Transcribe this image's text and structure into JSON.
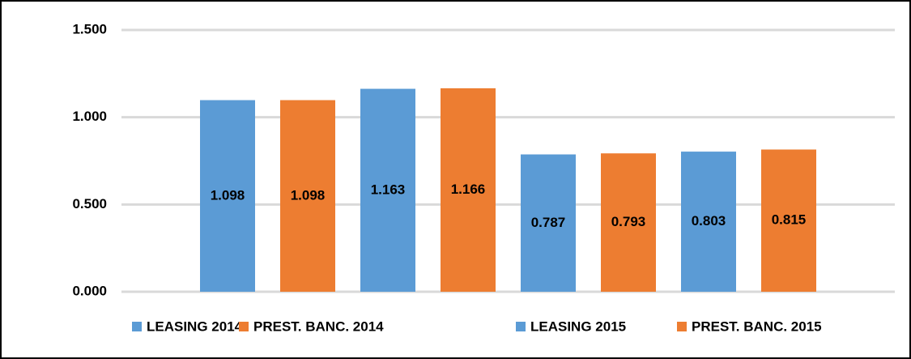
{
  "chart_data": {
    "type": "bar",
    "categories": [
      null,
      null
    ],
    "series": [
      {
        "name": "LEASING 2014",
        "color": "#5b9bd5",
        "values": [
          1.098,
          0.787
        ]
      },
      {
        "name": "PREST. BANC. 2014",
        "color": "#ed7d31",
        "values": [
          1.098,
          0.793
        ]
      },
      {
        "name": "LEASING 2015",
        "color": "#5b9bd5",
        "values": [
          1.163,
          0.803
        ]
      },
      {
        "name": "PREST. BANC. 2015",
        "color": "#ed7d31",
        "values": [
          1.166,
          0.815
        ]
      }
    ],
    "ylim": [
      0,
      1.5
    ],
    "yticks": [
      {
        "value": 0,
        "label": "0.000"
      },
      {
        "value": 0.5,
        "label": "0.500"
      },
      {
        "value": 1,
        "label": "1.000"
      },
      {
        "value": 1.5,
        "label": "1.500"
      }
    ],
    "grid": true,
    "legend": "bottom"
  }
}
